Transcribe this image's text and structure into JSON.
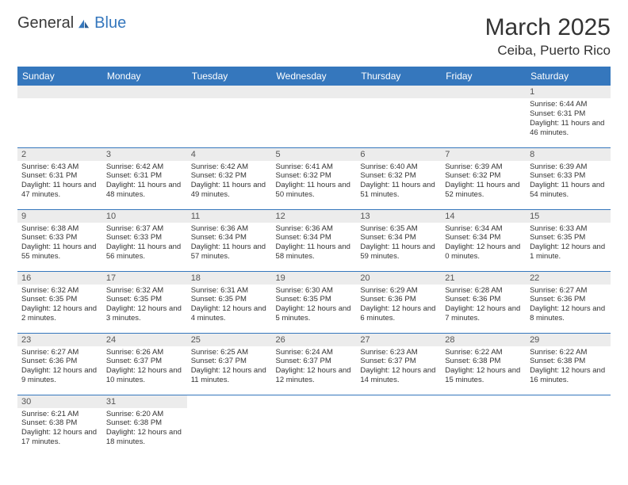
{
  "logo": {
    "general": "General",
    "blue": "Blue"
  },
  "header": {
    "title": "March 2025",
    "location": "Ceiba, Puerto Rico"
  },
  "colors": {
    "header_bg": "#3577bd",
    "header_fg": "#ffffff",
    "daynum_bg": "#ececec",
    "border": "#3577bd",
    "logo_blue": "#3577bd"
  },
  "weekdays": [
    "Sunday",
    "Monday",
    "Tuesday",
    "Wednesday",
    "Thursday",
    "Friday",
    "Saturday"
  ],
  "weeks": [
    [
      null,
      null,
      null,
      null,
      null,
      null,
      {
        "n": "1",
        "sunrise": "6:44 AM",
        "sunset": "6:31 PM",
        "daylight": "11 hours and 46 minutes."
      }
    ],
    [
      {
        "n": "2",
        "sunrise": "6:43 AM",
        "sunset": "6:31 PM",
        "daylight": "11 hours and 47 minutes."
      },
      {
        "n": "3",
        "sunrise": "6:42 AM",
        "sunset": "6:31 PM",
        "daylight": "11 hours and 48 minutes."
      },
      {
        "n": "4",
        "sunrise": "6:42 AM",
        "sunset": "6:32 PM",
        "daylight": "11 hours and 49 minutes."
      },
      {
        "n": "5",
        "sunrise": "6:41 AM",
        "sunset": "6:32 PM",
        "daylight": "11 hours and 50 minutes."
      },
      {
        "n": "6",
        "sunrise": "6:40 AM",
        "sunset": "6:32 PM",
        "daylight": "11 hours and 51 minutes."
      },
      {
        "n": "7",
        "sunrise": "6:39 AM",
        "sunset": "6:32 PM",
        "daylight": "11 hours and 52 minutes."
      },
      {
        "n": "8",
        "sunrise": "6:39 AM",
        "sunset": "6:33 PM",
        "daylight": "11 hours and 54 minutes."
      }
    ],
    [
      {
        "n": "9",
        "sunrise": "6:38 AM",
        "sunset": "6:33 PM",
        "daylight": "11 hours and 55 minutes."
      },
      {
        "n": "10",
        "sunrise": "6:37 AM",
        "sunset": "6:33 PM",
        "daylight": "11 hours and 56 minutes."
      },
      {
        "n": "11",
        "sunrise": "6:36 AM",
        "sunset": "6:34 PM",
        "daylight": "11 hours and 57 minutes."
      },
      {
        "n": "12",
        "sunrise": "6:36 AM",
        "sunset": "6:34 PM",
        "daylight": "11 hours and 58 minutes."
      },
      {
        "n": "13",
        "sunrise": "6:35 AM",
        "sunset": "6:34 PM",
        "daylight": "11 hours and 59 minutes."
      },
      {
        "n": "14",
        "sunrise": "6:34 AM",
        "sunset": "6:34 PM",
        "daylight": "12 hours and 0 minutes."
      },
      {
        "n": "15",
        "sunrise": "6:33 AM",
        "sunset": "6:35 PM",
        "daylight": "12 hours and 1 minute."
      }
    ],
    [
      {
        "n": "16",
        "sunrise": "6:32 AM",
        "sunset": "6:35 PM",
        "daylight": "12 hours and 2 minutes."
      },
      {
        "n": "17",
        "sunrise": "6:32 AM",
        "sunset": "6:35 PM",
        "daylight": "12 hours and 3 minutes."
      },
      {
        "n": "18",
        "sunrise": "6:31 AM",
        "sunset": "6:35 PM",
        "daylight": "12 hours and 4 minutes."
      },
      {
        "n": "19",
        "sunrise": "6:30 AM",
        "sunset": "6:35 PM",
        "daylight": "12 hours and 5 minutes."
      },
      {
        "n": "20",
        "sunrise": "6:29 AM",
        "sunset": "6:36 PM",
        "daylight": "12 hours and 6 minutes."
      },
      {
        "n": "21",
        "sunrise": "6:28 AM",
        "sunset": "6:36 PM",
        "daylight": "12 hours and 7 minutes."
      },
      {
        "n": "22",
        "sunrise": "6:27 AM",
        "sunset": "6:36 PM",
        "daylight": "12 hours and 8 minutes."
      }
    ],
    [
      {
        "n": "23",
        "sunrise": "6:27 AM",
        "sunset": "6:36 PM",
        "daylight": "12 hours and 9 minutes."
      },
      {
        "n": "24",
        "sunrise": "6:26 AM",
        "sunset": "6:37 PM",
        "daylight": "12 hours and 10 minutes."
      },
      {
        "n": "25",
        "sunrise": "6:25 AM",
        "sunset": "6:37 PM",
        "daylight": "12 hours and 11 minutes."
      },
      {
        "n": "26",
        "sunrise": "6:24 AM",
        "sunset": "6:37 PM",
        "daylight": "12 hours and 12 minutes."
      },
      {
        "n": "27",
        "sunrise": "6:23 AM",
        "sunset": "6:37 PM",
        "daylight": "12 hours and 14 minutes."
      },
      {
        "n": "28",
        "sunrise": "6:22 AM",
        "sunset": "6:38 PM",
        "daylight": "12 hours and 15 minutes."
      },
      {
        "n": "29",
        "sunrise": "6:22 AM",
        "sunset": "6:38 PM",
        "daylight": "12 hours and 16 minutes."
      }
    ],
    [
      {
        "n": "30",
        "sunrise": "6:21 AM",
        "sunset": "6:38 PM",
        "daylight": "12 hours and 17 minutes."
      },
      {
        "n": "31",
        "sunrise": "6:20 AM",
        "sunset": "6:38 PM",
        "daylight": "12 hours and 18 minutes."
      },
      null,
      null,
      null,
      null,
      null
    ]
  ],
  "labels": {
    "sunrise": "Sunrise:",
    "sunset": "Sunset:",
    "daylight": "Daylight:"
  }
}
